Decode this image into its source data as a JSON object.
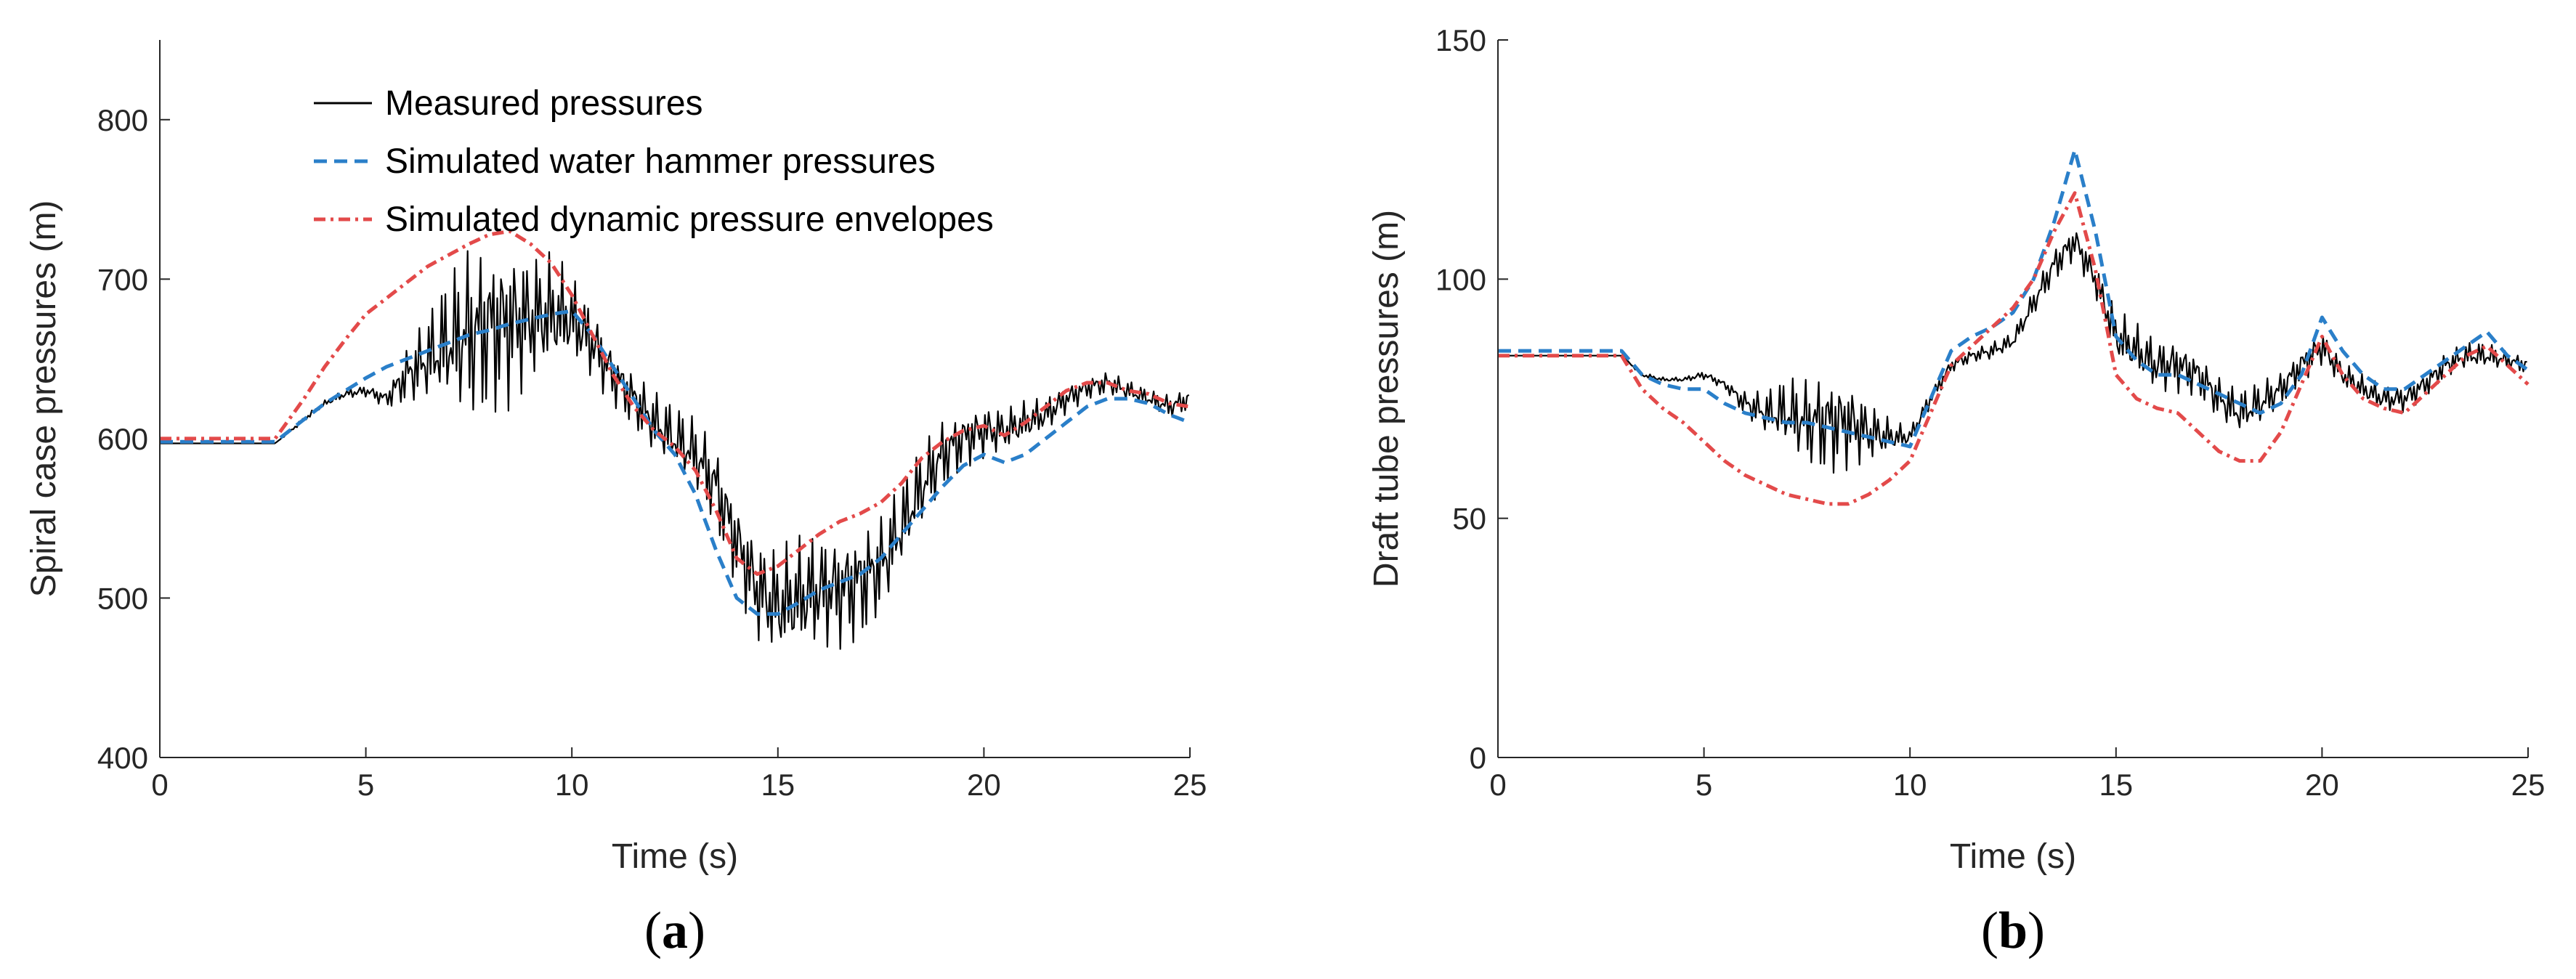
{
  "colors": {
    "measured": "#000000",
    "water_hammer": "#2a7fc9",
    "envelope": "#e34a4a",
    "axis": "#262626"
  },
  "chart_data": [
    {
      "type": "line",
      "panel_label": "a",
      "xlabel": "Time (s)",
      "ylabel": "Spiral case pressures (m)",
      "xlim": [
        0,
        25
      ],
      "ylim": [
        400,
        850
      ],
      "xticks": [
        0,
        5,
        10,
        15,
        20,
        25
      ],
      "yticks": [
        400,
        500,
        600,
        700,
        800
      ],
      "legend": {
        "location": "top-left"
      },
      "series": [
        {
          "name": "Measured pressures",
          "style": "solid",
          "x": [
            0,
            1,
            2,
            2.8,
            3.5,
            4,
            4.5,
            5,
            5.5,
            6,
            6.5,
            7,
            7.5,
            8,
            8.5,
            9,
            9.5,
            10,
            10.5,
            11,
            11.5,
            12,
            12.5,
            13,
            13.5,
            14,
            14.5,
            15,
            15.5,
            16,
            16.5,
            17,
            17.5,
            18,
            18.5,
            19,
            19.5,
            20,
            20.5,
            21,
            21.5,
            22,
            22.5,
            23,
            23.5,
            24,
            24.5,
            25
          ],
          "y": [
            597,
            597,
            597,
            597,
            612,
            622,
            628,
            630,
            625,
            640,
            650,
            660,
            665,
            670,
            672,
            675,
            678,
            675,
            660,
            640,
            625,
            610,
            600,
            590,
            570,
            535,
            505,
            495,
            500,
            505,
            505,
            510,
            520,
            545,
            570,
            590,
            600,
            605,
            605,
            610,
            615,
            625,
            632,
            635,
            630,
            625,
            620,
            625
          ],
          "noise_amplitude": [
            0,
            0,
            0,
            0,
            2,
            2,
            3,
            4,
            6,
            20,
            30,
            45,
            60,
            60,
            55,
            45,
            40,
            30,
            25,
            20,
            20,
            22,
            22,
            25,
            30,
            30,
            35,
            38,
            40,
            40,
            38,
            40,
            35,
            30,
            28,
            25,
            20,
            18,
            15,
            14,
            12,
            10,
            8,
            8,
            7,
            6,
            8,
            8
          ]
        },
        {
          "name": "Simulated water hammer pressures",
          "style": "dashed",
          "x": [
            0,
            1,
            2,
            2.8,
            3.5,
            4,
            4.5,
            5,
            5.5,
            6,
            6.5,
            7,
            7.5,
            8,
            8.5,
            9,
            9.5,
            10,
            10.5,
            11,
            11.5,
            12,
            12.5,
            13,
            13.5,
            14,
            14.5,
            15,
            15.5,
            16,
            16.5,
            17,
            17.5,
            18,
            18.5,
            19,
            19.5,
            20,
            20.5,
            21,
            21.5,
            22,
            22.5,
            23,
            23.5,
            24,
            24.5,
            25
          ],
          "y": [
            598,
            598,
            598,
            598,
            612,
            622,
            630,
            638,
            645,
            650,
            655,
            660,
            665,
            668,
            672,
            675,
            678,
            680,
            665,
            645,
            625,
            605,
            590,
            565,
            530,
            500,
            490,
            490,
            497,
            505,
            510,
            515,
            525,
            540,
            555,
            570,
            583,
            590,
            585,
            590,
            600,
            610,
            620,
            625,
            625,
            622,
            615,
            610
          ]
        },
        {
          "name": "Simulated dynamic pressure envelopes",
          "style": "dashdot",
          "x": [
            0,
            1,
            2,
            2.8,
            3.5,
            4,
            4.5,
            5,
            5.5,
            6,
            6.5,
            7,
            7.5,
            8,
            8.5,
            9,
            9.5,
            10,
            10.5,
            11,
            11.5,
            12,
            12.5,
            13,
            13.5,
            14,
            14.5,
            15,
            15.5,
            16,
            16.5,
            17,
            17.5,
            18,
            18.5,
            19,
            19.5,
            20,
            20.5,
            21,
            21.5,
            22,
            22.5,
            23,
            23.5,
            24,
            24.5,
            25
          ],
          "y": [
            600,
            600,
            600,
            600,
            625,
            645,
            662,
            678,
            688,
            698,
            708,
            715,
            722,
            728,
            730,
            722,
            710,
            690,
            665,
            640,
            620,
            605,
            595,
            580,
            555,
            525,
            515,
            520,
            530,
            540,
            548,
            553,
            560,
            572,
            588,
            598,
            605,
            608,
            602,
            610,
            620,
            630,
            635,
            635,
            630,
            628,
            622,
            620
          ]
        }
      ]
    },
    {
      "type": "line",
      "panel_label": "b",
      "xlabel": "Time (s)",
      "ylabel": "Draft tube pressures (m)",
      "xlim": [
        0,
        25
      ],
      "ylim": [
        0,
        150
      ],
      "xticks": [
        0,
        5,
        10,
        15,
        20,
        25
      ],
      "yticks": [
        0,
        50,
        100,
        150
      ],
      "series": [
        {
          "name": "Measured pressures",
          "style": "solid",
          "x": [
            0,
            1,
            2,
            3,
            3.5,
            4,
            4.5,
            5,
            5.5,
            6,
            6.5,
            7,
            7.5,
            8,
            8.5,
            9,
            9.5,
            10,
            10.5,
            11,
            11.5,
            12,
            12.5,
            13,
            13.5,
            14,
            14.5,
            15,
            15.5,
            16,
            16.5,
            17,
            17.5,
            18,
            18.5,
            19,
            19.5,
            20,
            20.5,
            21,
            21.5,
            22,
            22.5,
            23,
            23.5,
            24,
            24.5,
            25
          ],
          "y": [
            84,
            84,
            84,
            84,
            80,
            79,
            79,
            80,
            78,
            74,
            72,
            72,
            70,
            70,
            70,
            68,
            67,
            67,
            75,
            82,
            84,
            85,
            87,
            95,
            103,
            108,
            100,
            88,
            85,
            82,
            82,
            80,
            75,
            72,
            74,
            77,
            82,
            86,
            80,
            77,
            75,
            75,
            78,
            82,
            84,
            84,
            83,
            82
          ],
          "noise_amplitude": [
            0,
            0,
            0,
            0,
            0.5,
            0.5,
            0.5,
            1,
            1,
            3,
            5,
            8,
            10,
            12,
            10,
            7,
            4,
            2,
            2,
            1.5,
            1.5,
            2,
            2,
            3,
            4,
            4,
            4,
            6,
            6,
            6,
            6,
            5,
            5,
            5,
            5,
            4,
            4,
            4,
            3,
            3,
            3,
            3,
            3,
            3,
            3,
            3,
            2,
            2
          ]
        },
        {
          "name": "Simulated water hammer pressures",
          "style": "dashed",
          "x": [
            0,
            1,
            2,
            3,
            3.5,
            4,
            4.5,
            5,
            5.5,
            6,
            6.5,
            7,
            7.5,
            8,
            8.5,
            9,
            9.5,
            10,
            10.5,
            11,
            11.5,
            12,
            12.5,
            13,
            13.5,
            14,
            14.5,
            15,
            15.5,
            16,
            16.5,
            17,
            17.5,
            18,
            18.5,
            19,
            19.5,
            20,
            20.5,
            21,
            21.5,
            22,
            22.5,
            23,
            23.5,
            24,
            24.5,
            25
          ],
          "y": [
            85,
            85,
            85,
            85,
            80,
            78,
            77,
            77,
            74,
            72,
            71,
            70,
            70,
            69,
            68,
            67,
            66,
            65,
            75,
            85,
            88,
            90,
            93,
            100,
            112,
            127,
            110,
            88,
            83,
            80,
            80,
            78,
            76,
            74,
            72,
            74,
            80,
            92,
            85,
            80,
            77,
            77,
            80,
            83,
            86,
            89,
            84,
            81
          ]
        },
        {
          "name": "Simulated dynamic pressure envelopes",
          "style": "dashdot",
          "x": [
            0,
            1,
            2,
            3,
            3.5,
            4,
            4.5,
            5,
            5.5,
            6,
            6.5,
            7,
            7.5,
            8,
            8.5,
            9,
            9.5,
            10,
            10.5,
            11,
            11.5,
            12,
            12.5,
            13,
            13.5,
            14,
            14.5,
            15,
            15.5,
            16,
            16.5,
            17,
            17.5,
            18,
            18.5,
            19,
            19.5,
            20,
            20.5,
            21,
            21.5,
            22,
            22.5,
            23,
            23.5,
            24,
            24.5,
            25
          ],
          "y": [
            84,
            84,
            84,
            84,
            77,
            73,
            70,
            66,
            62,
            59,
            57,
            55,
            54,
            53,
            53,
            55,
            58,
            62,
            72,
            82,
            86,
            90,
            94,
            100,
            110,
            118,
            102,
            80,
            75,
            73,
            72,
            68,
            64,
            62,
            62,
            68,
            78,
            88,
            80,
            75,
            73,
            72,
            76,
            80,
            84,
            86,
            82,
            78
          ]
        }
      ]
    }
  ]
}
